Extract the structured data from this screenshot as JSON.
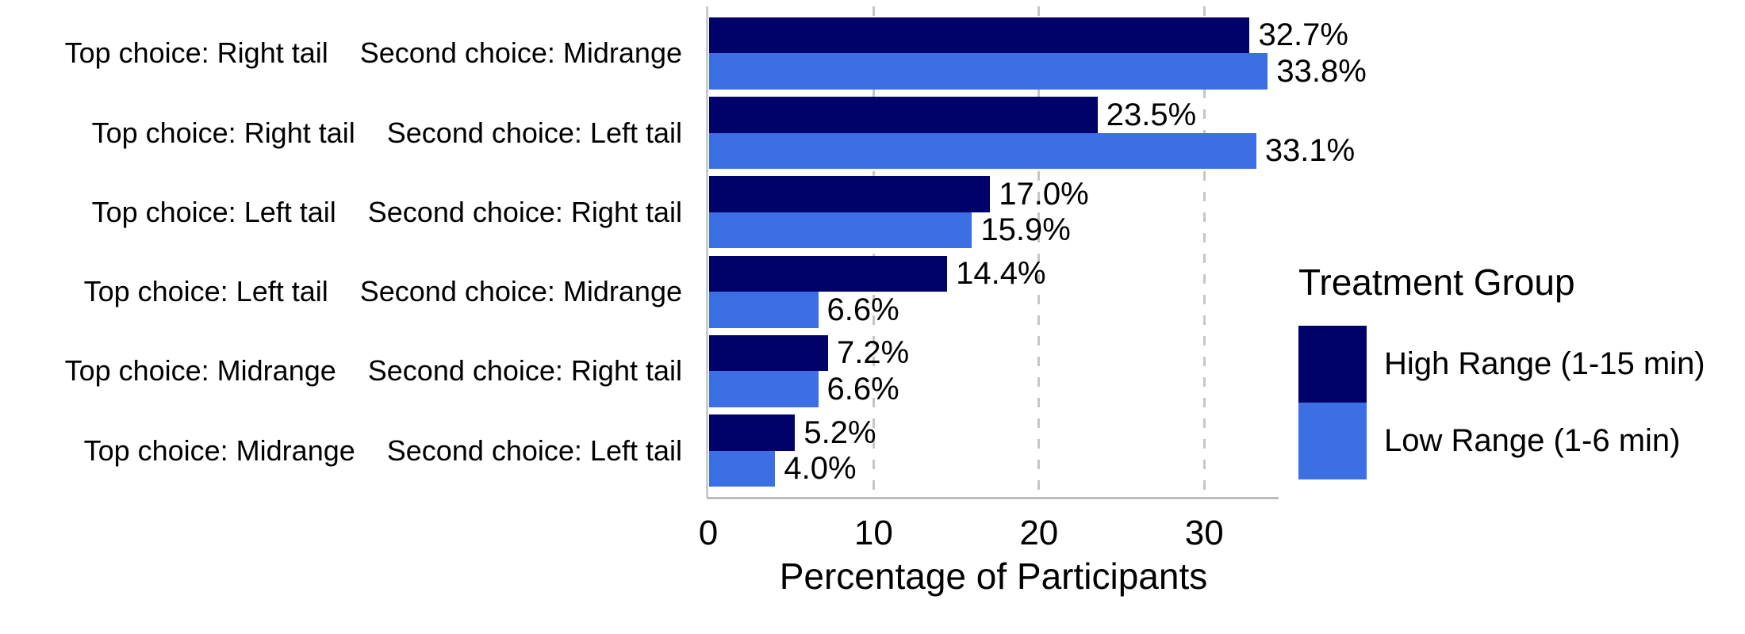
{
  "chart_data": {
    "type": "bar",
    "orientation": "horizontal",
    "xlabel": "Percentage of Participants",
    "ylabel": "",
    "xlim": [
      0,
      34.5
    ],
    "x_tick_values": [
      0,
      10,
      20,
      30
    ],
    "x_tick_labels": [
      "0",
      "10",
      "20",
      "30"
    ],
    "grid": {
      "style": "dashed-vertical",
      "at": [
        10,
        20,
        30
      ],
      "color": "#c6c6c6"
    },
    "axis_line_color": "#bcbcbc",
    "text_color": "#000000",
    "categories": [
      {
        "top": "Top choice: Right tail",
        "second": "Second choice: Midrange"
      },
      {
        "top": "Top choice: Right tail",
        "second": "Second choice: Left tail"
      },
      {
        "top": "Top choice: Left tail",
        "second": "Second choice: Right tail"
      },
      {
        "top": "Top choice: Left tail",
        "second": "Second choice: Midrange"
      },
      {
        "top": "Top choice: Midrange",
        "second": "Second choice: Right tail"
      },
      {
        "top": "Top choice: Midrange",
        "second": "Second choice: Left tail"
      }
    ],
    "series": [
      {
        "name": "High Range (1-15 min)",
        "color": "#00026a",
        "values": [
          32.7,
          23.5,
          17.0,
          14.4,
          7.2,
          5.2
        ],
        "value_labels": [
          "32.7%",
          "23.5%",
          "17.0%",
          "14.4%",
          "7.2%",
          "5.2%"
        ]
      },
      {
        "name": "Low Range (1-6 min)",
        "color": "#3c6fe3",
        "values": [
          33.8,
          33.1,
          15.9,
          6.6,
          6.6,
          4.0
        ],
        "value_labels": [
          "33.8%",
          "33.1%",
          "15.9%",
          "6.6%",
          "6.6%",
          "4.0%"
        ]
      }
    ],
    "legend": {
      "title": "Treatment Group",
      "position": "right"
    }
  }
}
